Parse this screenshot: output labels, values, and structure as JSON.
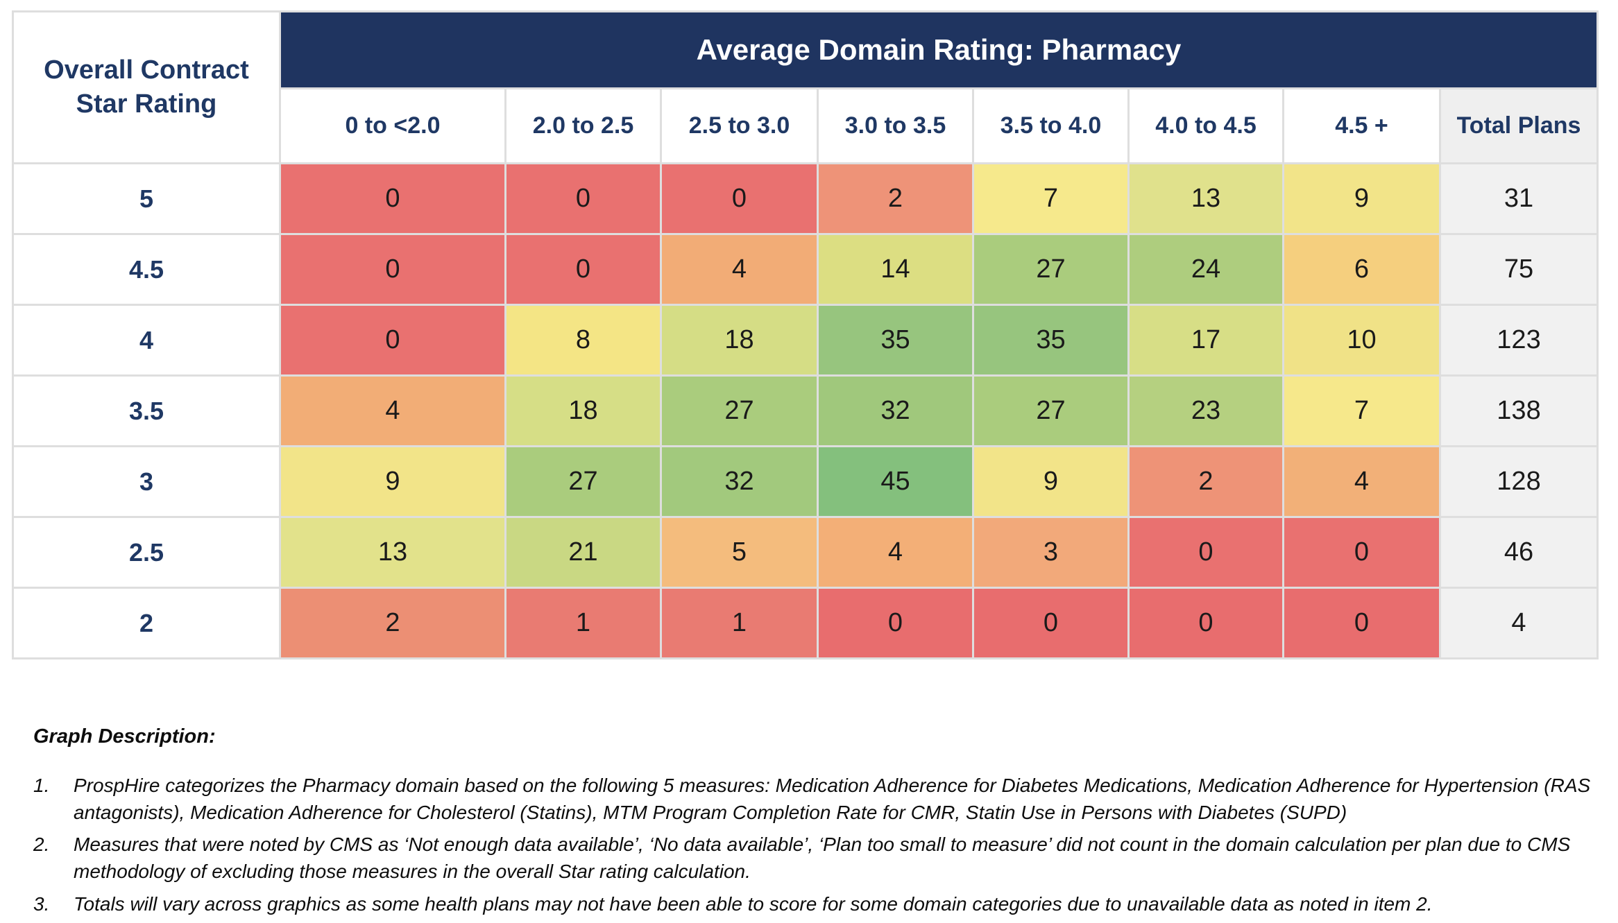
{
  "table": {
    "title": "Average Domain Rating: Pharmacy",
    "row_header": "Overall Contract Star Rating",
    "columns": [
      "0 to <2.0",
      "2.0 to 2.5",
      "2.5 to 3.0",
      "3.0 to 3.5",
      "3.5 to 4.0",
      "4.0 to 4.5",
      "4.5 +"
    ],
    "total_column": "Total Plans",
    "colors": {
      "header_bg": "#1F3460",
      "header_text": "#ffffff",
      "label_text": "#1F3864",
      "total_bg": "#f1f1f1",
      "grid_line": "#dedede"
    },
    "rows": [
      {
        "label": "5",
        "values": [
          0,
          0,
          0,
          2,
          7,
          13,
          9
        ],
        "colors": [
          "#E97170",
          "#E97170",
          "#E97170",
          "#EE9378",
          "#F6E98C",
          "#E0E18C",
          "#F2E489"
        ],
        "total": 31
      },
      {
        "label": "4.5",
        "values": [
          0,
          0,
          4,
          14,
          27,
          24,
          6
        ],
        "colors": [
          "#E97170",
          "#E97170",
          "#F2AC76",
          "#DCDE82",
          "#AACC7D",
          "#AECD7E",
          "#F5CF7E"
        ],
        "total": 75
      },
      {
        "label": "4",
        "values": [
          0,
          8,
          18,
          35,
          35,
          17,
          10
        ],
        "colors": [
          "#E97170",
          "#F4E585",
          "#D5DD85",
          "#97C57E",
          "#97C57E",
          "#D7DE86",
          "#F0E287"
        ],
        "total": 123
      },
      {
        "label": "3.5",
        "values": [
          4,
          18,
          27,
          32,
          27,
          23,
          7
        ],
        "colors": [
          "#F2AD76",
          "#D6DE86",
          "#AACC7D",
          "#A0C87C",
          "#AACC7D",
          "#B5D080",
          "#F6E88B"
        ],
        "total": 138
      },
      {
        "label": "3",
        "values": [
          9,
          27,
          32,
          45,
          9,
          2,
          4
        ],
        "colors": [
          "#F2E489",
          "#AACC7D",
          "#A2C97D",
          "#84C07D",
          "#F2E489",
          "#EE9377",
          "#F2B078"
        ],
        "total": 128
      },
      {
        "label": "2.5",
        "values": [
          13,
          21,
          5,
          4,
          3,
          0,
          0
        ],
        "colors": [
          "#E2E28B",
          "#C9D883",
          "#F4BC7D",
          "#F3AF77",
          "#F2A97A",
          "#E97170",
          "#E97170"
        ],
        "total": 46
      },
      {
        "label": "2",
        "values": [
          2,
          1,
          1,
          0,
          0,
          0,
          0
        ],
        "colors": [
          "#EC8F74",
          "#E97B72",
          "#E97B72",
          "#E86D6E",
          "#E86D6E",
          "#E86D6E",
          "#E86D6E"
        ],
        "total": 4
      }
    ]
  },
  "notes": {
    "title": "Graph Description:",
    "items": [
      {
        "num": "1.",
        "text": "ProspHire categorizes the Pharmacy domain based on the following 5 measures: Medication Adherence for Diabetes Medications, Medication Adherence for Hypertension (RAS antagonists), Medication Adherence for Cholesterol (Statins), MTM Program Completion Rate for CMR, Statin Use in Persons with Diabetes (SUPD)"
      },
      {
        "num": "2.",
        "text": "Measures that were noted by CMS as ‘Not enough data available’, ‘No data available’, ‘Plan too small to measure’ did not count in the domain calculation per plan due to CMS methodology of excluding those measures in the overall Star rating calculation."
      },
      {
        "num": "3.",
        "text": "Totals will vary across graphics as some health plans may not have been able to score for some domain categories due to unavailable data as noted in item 2."
      }
    ]
  },
  "chart_data": {
    "type": "heatmap",
    "title": "Average Domain Rating: Pharmacy",
    "row_axis_label": "Overall Contract Star Rating",
    "rows": [
      "5",
      "4.5",
      "4",
      "3.5",
      "3",
      "2.5",
      "2"
    ],
    "columns": [
      "0 to <2.0",
      "2.0 to 2.5",
      "2.5 to 3.0",
      "3.0 to 3.5",
      "3.5 to 4.0",
      "4.0 to 4.5",
      "4.5 +"
    ],
    "values": [
      [
        0,
        0,
        0,
        2,
        7,
        13,
        9
      ],
      [
        0,
        0,
        4,
        14,
        27,
        24,
        6
      ],
      [
        0,
        8,
        18,
        35,
        35,
        17,
        10
      ],
      [
        4,
        18,
        27,
        32,
        27,
        23,
        7
      ],
      [
        9,
        27,
        32,
        45,
        9,
        2,
        4
      ],
      [
        13,
        21,
        5,
        4,
        3,
        0,
        0
      ],
      [
        2,
        1,
        1,
        0,
        0,
        0,
        0
      ]
    ],
    "row_totals": [
      31,
      75,
      123,
      138,
      128,
      46,
      4
    ],
    "total_column_label": "Total Plans",
    "color_scale": {
      "low": "#E97170",
      "mid": "#F5E98B",
      "high": "#84C07D"
    },
    "legend": "none",
    "grid": true
  }
}
